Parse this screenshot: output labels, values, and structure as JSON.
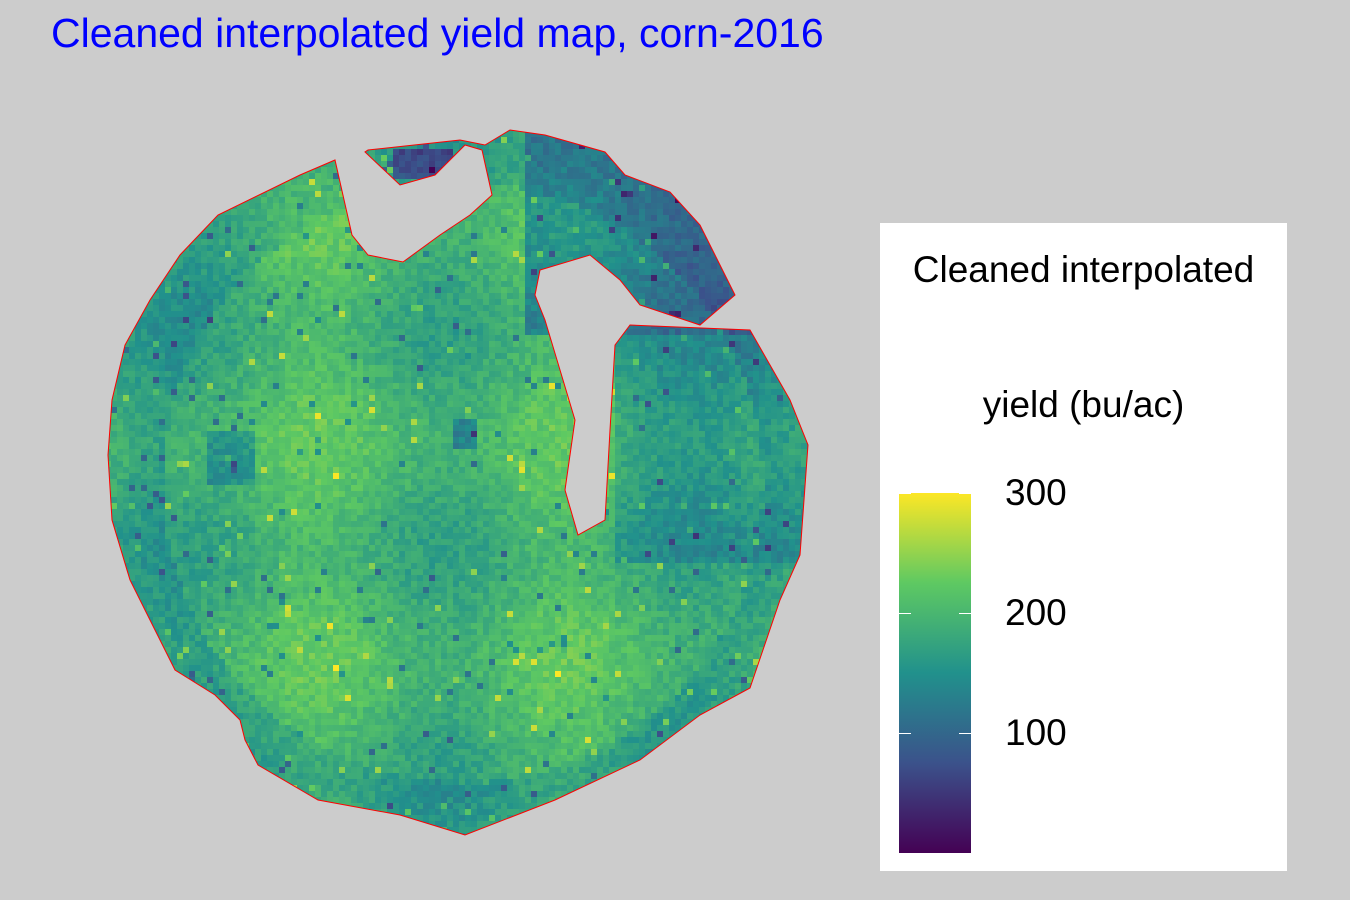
{
  "title": "Cleaned interpolated yield map, corn-2016",
  "legend": {
    "title_line1": "Cleaned interpolated",
    "title_line2": "yield (bu/ac)",
    "min": 0,
    "max": 300,
    "ticks": [
      {
        "value": 300,
        "label": "300"
      },
      {
        "value": 200,
        "label": "200"
      },
      {
        "value": 100,
        "label": "100"
      }
    ],
    "colormap": [
      "#440154",
      "#3b528b",
      "#21918c",
      "#5ec962",
      "#fde725"
    ]
  },
  "colors": {
    "background": "#cccccc",
    "title": "#0000ff",
    "boundary": "#ff0000",
    "legend_background": "#ffffff"
  }
}
